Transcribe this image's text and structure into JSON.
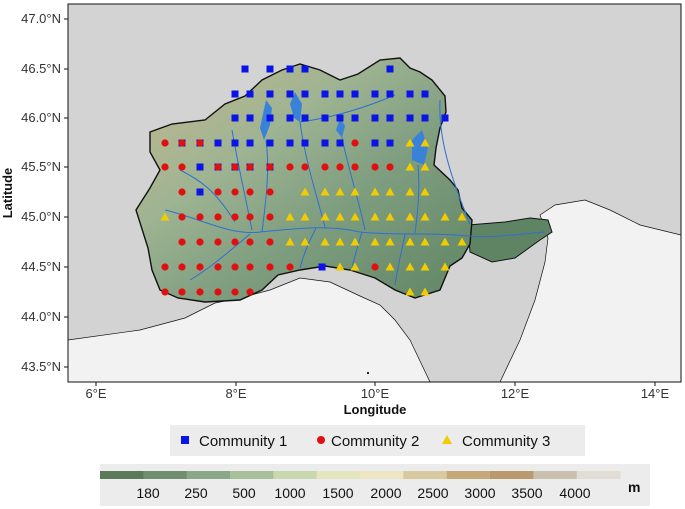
{
  "axes": {
    "x_title": "Longitude",
    "y_title": "Latitude",
    "x_ticks": [
      "6°E",
      "8°E",
      "10°E",
      "12°E",
      "14°E"
    ],
    "y_ticks": [
      "43.5°N",
      "44.0°N",
      "44.5°N",
      "45.0°N",
      "45.5°N",
      "46.0°N",
      "46.5°N",
      "47.0°N"
    ]
  },
  "legend": {
    "items": [
      {
        "label": "Community 1",
        "marker": "square",
        "color": "#0a14e6"
      },
      {
        "label": "Community 2",
        "marker": "circle",
        "color": "#e01010"
      },
      {
        "label": "Community 3",
        "marker": "triangle",
        "color": "#f2cc00"
      }
    ]
  },
  "elevation_scale": {
    "unit": "m",
    "labels": [
      "180",
      "250",
      "500",
      "1000",
      "1500",
      "2000",
      "2500",
      "3000",
      "3500",
      "4000"
    ],
    "colors": [
      "#5a7a5a",
      "#6f8f6f",
      "#8aa888",
      "#a8c09a",
      "#c9d8ae",
      "#e4e6bf",
      "#ece6c4",
      "#d9c9a0",
      "#c6a978",
      "#b89a6c",
      "#c8bfae",
      "#e2ddd4"
    ]
  },
  "colors": {
    "land_outside": "#d3d3d3",
    "sea": "#f2f2f2",
    "river": "#2f6fd0",
    "lake": "#3a82d8",
    "background": "#ffffff"
  }
}
